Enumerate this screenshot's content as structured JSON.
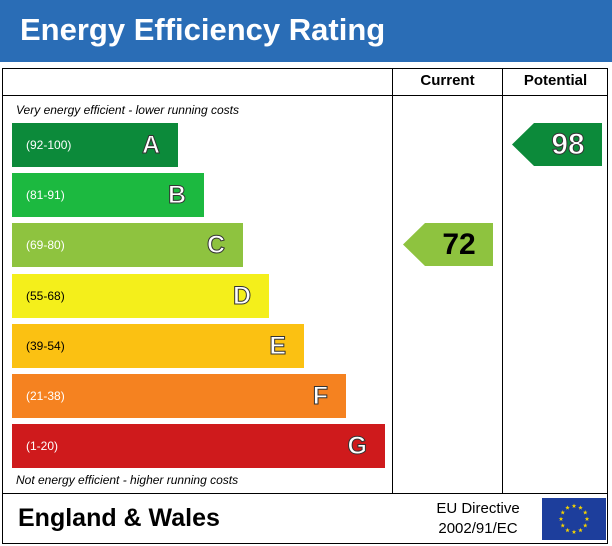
{
  "header": {
    "title": "Energy Efficiency Rating"
  },
  "columns": {
    "current_label": "Current",
    "potential_label": "Potential"
  },
  "captions": {
    "top": "Very energy efficient - lower running costs",
    "bottom": "Not energy efficient - higher running costs"
  },
  "bands": [
    {
      "letter": "A",
      "range": "(92-100)",
      "color": "#0c8a3a",
      "range_color": "#ffffff"
    },
    {
      "letter": "B",
      "range": "(81-91)",
      "color": "#1cb940",
      "range_color": "#ffffff"
    },
    {
      "letter": "C",
      "range": "(69-80)",
      "color": "#8ec33f",
      "range_color": "#ffffff"
    },
    {
      "letter": "D",
      "range": "(55-68)",
      "color": "#f4ef1b",
      "range_color": "#000000"
    },
    {
      "letter": "E",
      "range": "(39-54)",
      "color": "#fbc112",
      "range_color": "#000000"
    },
    {
      "letter": "F",
      "range": "(21-38)",
      "color": "#f58220",
      "range_color": "#ffffff"
    },
    {
      "letter": "G",
      "range": "(1-20)",
      "color": "#cf1a1c",
      "range_color": "#ffffff"
    }
  ],
  "ratings": {
    "current": {
      "value": "72",
      "band": "C",
      "color": "#8ec33f"
    },
    "potential": {
      "value": "98",
      "band": "A",
      "color": "#0c8a3a"
    }
  },
  "footer": {
    "region": "England & Wales",
    "directive_line1": "EU Directive",
    "directive_line2": "2002/91/EC"
  },
  "colors": {
    "header": "#2a6db6",
    "eu_flag": "#1d3e9c",
    "eu_stars": "#f4d300"
  },
  "icons": {
    "flag": "eu-flag-icon"
  }
}
